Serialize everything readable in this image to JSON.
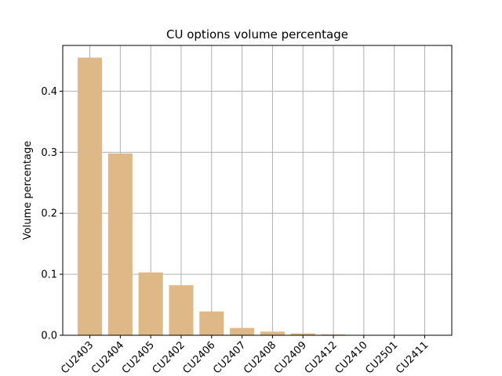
{
  "chart_data": {
    "type": "bar",
    "title": "CU options volume percentage",
    "xlabel": "",
    "ylabel": "Volume percentage",
    "categories": [
      "CU2403",
      "CU2404",
      "CU2405",
      "CU2402",
      "CU2406",
      "CU2407",
      "CU2408",
      "CU2409",
      "CU2412",
      "CU2410",
      "CU2501",
      "CU2411"
    ],
    "values": [
      0.455,
      0.298,
      0.103,
      0.082,
      0.039,
      0.012,
      0.006,
      0.003,
      0.0015,
      0.0005,
      0.0003,
      0.0002
    ],
    "ylim": [
      0,
      0.475
    ],
    "yticks": [
      0.0,
      0.1,
      0.2,
      0.3,
      0.4
    ],
    "ytick_labels": [
      "0.0",
      "0.1",
      "0.2",
      "0.3",
      "0.4"
    ],
    "grid": true,
    "bar_color": "#deb887",
    "grid_color": "#b0b0b0"
  }
}
